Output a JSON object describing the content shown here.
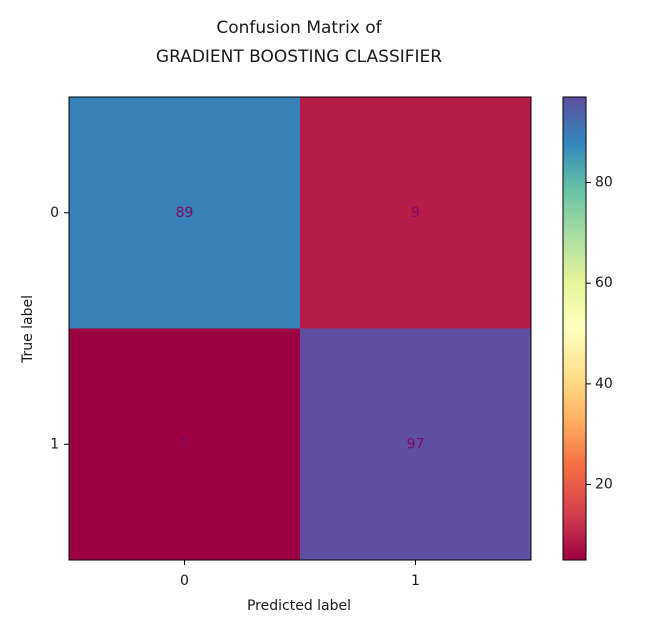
{
  "chart_data": {
    "type": "heatmap",
    "title_lines": [
      "Confusion Matrix of",
      "GRADIENT BOOSTING CLASSIFIER"
    ],
    "xlabel": "Predicted label",
    "ylabel": "True label",
    "x_categories": [
      "0",
      "1"
    ],
    "y_categories": [
      "0",
      "1"
    ],
    "values": [
      [
        89,
        9
      ],
      [
        5,
        97
      ]
    ],
    "colormap": "Spectral",
    "color_range": [
      5,
      97
    ],
    "colorbar_ticks": [
      20,
      40,
      60,
      80
    ],
    "colorbar_position": "right",
    "grid": false,
    "cell_text_color": "#800a5e"
  }
}
